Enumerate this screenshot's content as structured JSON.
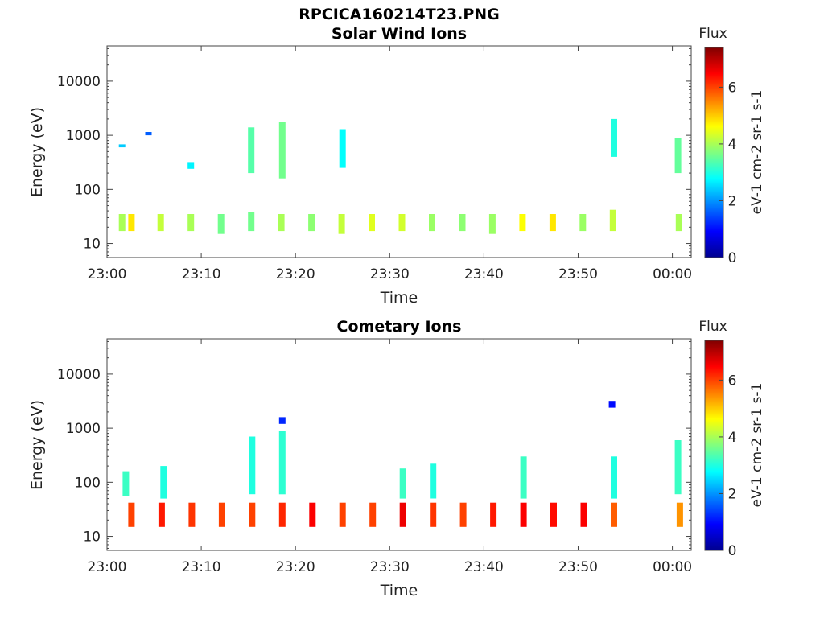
{
  "figure_title": "RPCICA160214T23.PNG",
  "chart_data": [
    {
      "type": "heatmap",
      "title": "Solar Wind Ions",
      "xlabel": "Time",
      "ylabel": "Energy (eV)",
      "x_ticks": [
        "23:00",
        "23:10",
        "23:20",
        "23:30",
        "23:40",
        "23:50",
        "00:00"
      ],
      "xlim_minutes": [
        0,
        62
      ],
      "y_scale": "log",
      "ylim": [
        5.5,
        45000
      ],
      "y_ticks": [
        {
          "value": 10,
          "label": "10"
        },
        {
          "value": 100,
          "label": "100"
        },
        {
          "value": 1000,
          "label": "1000"
        },
        {
          "value": 10000,
          "label": "10000"
        }
      ],
      "colorbar": {
        "title": "Flux",
        "label": "eV-1 cm-2 sr-1 s-1",
        "range": [
          0,
          7.4
        ],
        "ticks": [
          0,
          2,
          4,
          6
        ],
        "colormap": "jet"
      },
      "grid": false,
      "cells": [
        {
          "t": 1.6,
          "e_lo": 17,
          "e_hi": 35,
          "flux": 4.0
        },
        {
          "t": 2.6,
          "e_lo": 17,
          "e_hi": 35,
          "flux": 4.8
        },
        {
          "t": 5.7,
          "e_lo": 17,
          "e_hi": 35,
          "flux": 4.2
        },
        {
          "t": 8.9,
          "e_lo": 17,
          "e_hi": 35,
          "flux": 4.0
        },
        {
          "t": 12.1,
          "e_lo": 15,
          "e_hi": 35,
          "flux": 3.6
        },
        {
          "t": 15.3,
          "e_lo": 17,
          "e_hi": 38,
          "flux": 3.6
        },
        {
          "t": 18.5,
          "e_lo": 17,
          "e_hi": 35,
          "flux": 4.0
        },
        {
          "t": 21.7,
          "e_lo": 17,
          "e_hi": 35,
          "flux": 3.8
        },
        {
          "t": 24.9,
          "e_lo": 15,
          "e_hi": 35,
          "flux": 4.2
        },
        {
          "t": 28.1,
          "e_lo": 17,
          "e_hi": 35,
          "flux": 4.4
        },
        {
          "t": 31.3,
          "e_lo": 17,
          "e_hi": 35,
          "flux": 4.3
        },
        {
          "t": 34.5,
          "e_lo": 17,
          "e_hi": 35,
          "flux": 3.9
        },
        {
          "t": 37.7,
          "e_lo": 17,
          "e_hi": 35,
          "flux": 3.8
        },
        {
          "t": 40.9,
          "e_lo": 15,
          "e_hi": 35,
          "flux": 3.9
        },
        {
          "t": 44.1,
          "e_lo": 17,
          "e_hi": 35,
          "flux": 4.6
        },
        {
          "t": 47.3,
          "e_lo": 17,
          "e_hi": 35,
          "flux": 4.8
        },
        {
          "t": 50.5,
          "e_lo": 17,
          "e_hi": 35,
          "flux": 3.9
        },
        {
          "t": 53.7,
          "e_lo": 17,
          "e_hi": 42,
          "flux": 4.2
        },
        {
          "t": 60.7,
          "e_lo": 17,
          "e_hi": 35,
          "flux": 4.0
        },
        {
          "t": 15.3,
          "e_lo": 200,
          "e_hi": 1400,
          "flux": 3.4
        },
        {
          "t": 18.6,
          "e_lo": 160,
          "e_hi": 1800,
          "flux": 3.6
        },
        {
          "t": 25.0,
          "e_lo": 250,
          "e_hi": 1300,
          "flux": 2.8
        },
        {
          "t": 53.8,
          "e_lo": 400,
          "e_hi": 2000,
          "flux": 3.0
        },
        {
          "t": 60.6,
          "e_lo": 200,
          "e_hi": 900,
          "flux": 3.5
        },
        {
          "t": 8.9,
          "e_lo": 240,
          "e_hi": 320,
          "flux": 2.7
        },
        {
          "t": 1.6,
          "e_lo": 600,
          "e_hi": 680,
          "flux": 2.4
        },
        {
          "t": 4.4,
          "e_lo": 1000,
          "e_hi": 1150,
          "flux": 1.6
        }
      ]
    },
    {
      "type": "heatmap",
      "title": "Cometary Ions",
      "xlabel": "Time",
      "ylabel": "Energy (eV)",
      "x_ticks": [
        "23:00",
        "23:10",
        "23:20",
        "23:30",
        "23:40",
        "23:50",
        "00:00"
      ],
      "xlim_minutes": [
        0,
        62
      ],
      "y_scale": "log",
      "ylim": [
        5.5,
        45000
      ],
      "y_ticks": [
        {
          "value": 10,
          "label": "10"
        },
        {
          "value": 100,
          "label": "100"
        },
        {
          "value": 1000,
          "label": "1000"
        },
        {
          "value": 10000,
          "label": "10000"
        }
      ],
      "colorbar": {
        "title": "Flux",
        "label": "eV-1 cm-2 sr-1 s-1",
        "range": [
          0,
          7.4
        ],
        "ticks": [
          0,
          2,
          4,
          6
        ],
        "colormap": "jet"
      },
      "grid": false,
      "cells": [
        {
          "t": 2.6,
          "e_lo": 15,
          "e_hi": 42,
          "flux": 6.0
        },
        {
          "t": 5.8,
          "e_lo": 15,
          "e_hi": 42,
          "flux": 6.3
        },
        {
          "t": 9.0,
          "e_lo": 15,
          "e_hi": 42,
          "flux": 6.1
        },
        {
          "t": 12.2,
          "e_lo": 15,
          "e_hi": 42,
          "flux": 6.0
        },
        {
          "t": 15.4,
          "e_lo": 15,
          "e_hi": 42,
          "flux": 6.0
        },
        {
          "t": 18.6,
          "e_lo": 15,
          "e_hi": 42,
          "flux": 6.2
        },
        {
          "t": 21.8,
          "e_lo": 15,
          "e_hi": 42,
          "flux": 6.5
        },
        {
          "t": 25.0,
          "e_lo": 15,
          "e_hi": 42,
          "flux": 6.0
        },
        {
          "t": 28.2,
          "e_lo": 15,
          "e_hi": 42,
          "flux": 6.0
        },
        {
          "t": 31.4,
          "e_lo": 15,
          "e_hi": 42,
          "flux": 6.6
        },
        {
          "t": 34.6,
          "e_lo": 15,
          "e_hi": 42,
          "flux": 6.1
        },
        {
          "t": 37.8,
          "e_lo": 15,
          "e_hi": 42,
          "flux": 6.0
        },
        {
          "t": 41.0,
          "e_lo": 15,
          "e_hi": 42,
          "flux": 6.3
        },
        {
          "t": 44.2,
          "e_lo": 15,
          "e_hi": 42,
          "flux": 6.5
        },
        {
          "t": 47.4,
          "e_lo": 15,
          "e_hi": 42,
          "flux": 6.4
        },
        {
          "t": 50.6,
          "e_lo": 15,
          "e_hi": 42,
          "flux": 6.5
        },
        {
          "t": 53.8,
          "e_lo": 15,
          "e_hi": 42,
          "flux": 5.8
        },
        {
          "t": 60.8,
          "e_lo": 15,
          "e_hi": 42,
          "flux": 5.4
        },
        {
          "t": 2.0,
          "e_lo": 55,
          "e_hi": 160,
          "flux": 3.2
        },
        {
          "t": 6.0,
          "e_lo": 50,
          "e_hi": 200,
          "flux": 3.0
        },
        {
          "t": 15.4,
          "e_lo": 60,
          "e_hi": 700,
          "flux": 3.0
        },
        {
          "t": 18.6,
          "e_lo": 60,
          "e_hi": 900,
          "flux": 3.1
        },
        {
          "t": 31.4,
          "e_lo": 50,
          "e_hi": 180,
          "flux": 3.2
        },
        {
          "t": 34.6,
          "e_lo": 50,
          "e_hi": 220,
          "flux": 3.0
        },
        {
          "t": 44.2,
          "e_lo": 50,
          "e_hi": 300,
          "flux": 3.2
        },
        {
          "t": 53.8,
          "e_lo": 50,
          "e_hi": 300,
          "flux": 3.0
        },
        {
          "t": 60.6,
          "e_lo": 60,
          "e_hi": 600,
          "flux": 3.2
        },
        {
          "t": 18.6,
          "e_lo": 1200,
          "e_hi": 1600,
          "flux": 1.2
        },
        {
          "t": 53.6,
          "e_lo": 2400,
          "e_hi": 3200,
          "flux": 1.0
        }
      ]
    }
  ]
}
